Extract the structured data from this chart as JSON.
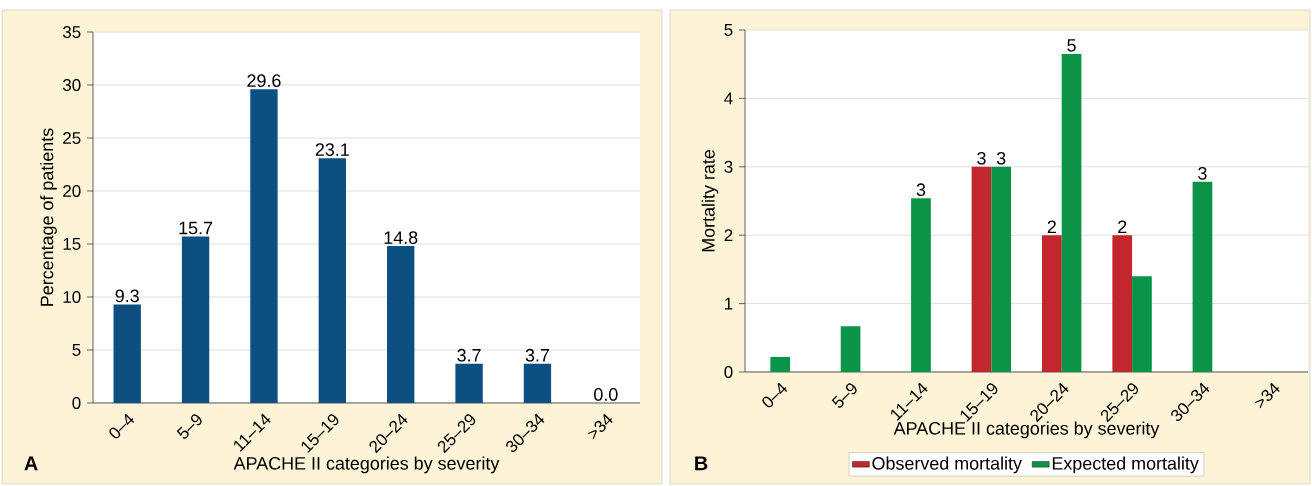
{
  "chart_data": [
    {
      "type": "bar",
      "categories": [
        "0–4",
        "5–9",
        "11–14",
        "15–19",
        "20–24",
        "25–29",
        "30–34",
        ">34"
      ],
      "values": [
        9.3,
        15.7,
        29.6,
        23.1,
        14.8,
        3.7,
        3.7,
        0.0
      ],
      "color": "#0d4f80",
      "value_labels": [
        "9.3",
        "15.7",
        "29.6",
        "23.1",
        "14.8",
        "3.7",
        "3.7",
        "0.0"
      ],
      "ylim": [
        0,
        35
      ],
      "yticks": [
        0,
        5,
        10,
        15,
        20,
        25,
        30,
        35
      ],
      "grid": "y",
      "xlabel": "APACHE II categories by severity",
      "ylabel": "Percentage of patients",
      "annotations": [
        "A"
      ]
    },
    {
      "type": "bar",
      "categories": [
        "0–4",
        "5–9",
        "11–14",
        "15–19",
        "20–24",
        "25–29",
        "30–34",
        ">34"
      ],
      "series": [
        {
          "name": "Observed mortality",
          "color": "#c1272d",
          "values": [
            null,
            null,
            null,
            3,
            2,
            2,
            null,
            null
          ],
          "value_labels": [
            null,
            null,
            null,
            "3",
            "2",
            "2",
            null,
            null
          ]
        },
        {
          "name": "Expected mortality",
          "color": "#0a9447",
          "values": [
            0.22,
            0.67,
            2.54,
            3,
            4.65,
            1.4,
            2.78,
            null
          ],
          "value_labels": [
            null,
            null,
            "3",
            "3",
            "5",
            null,
            "3",
            null
          ]
        }
      ],
      "ylim": [
        0,
        5
      ],
      "yticks": [
        0,
        1,
        2,
        3,
        4,
        5
      ],
      "grid": "y",
      "legend": "bottom",
      "xlabel": "APACHE II categories by severity",
      "ylabel": "Mortality rate",
      "annotations": [
        "B"
      ]
    }
  ]
}
